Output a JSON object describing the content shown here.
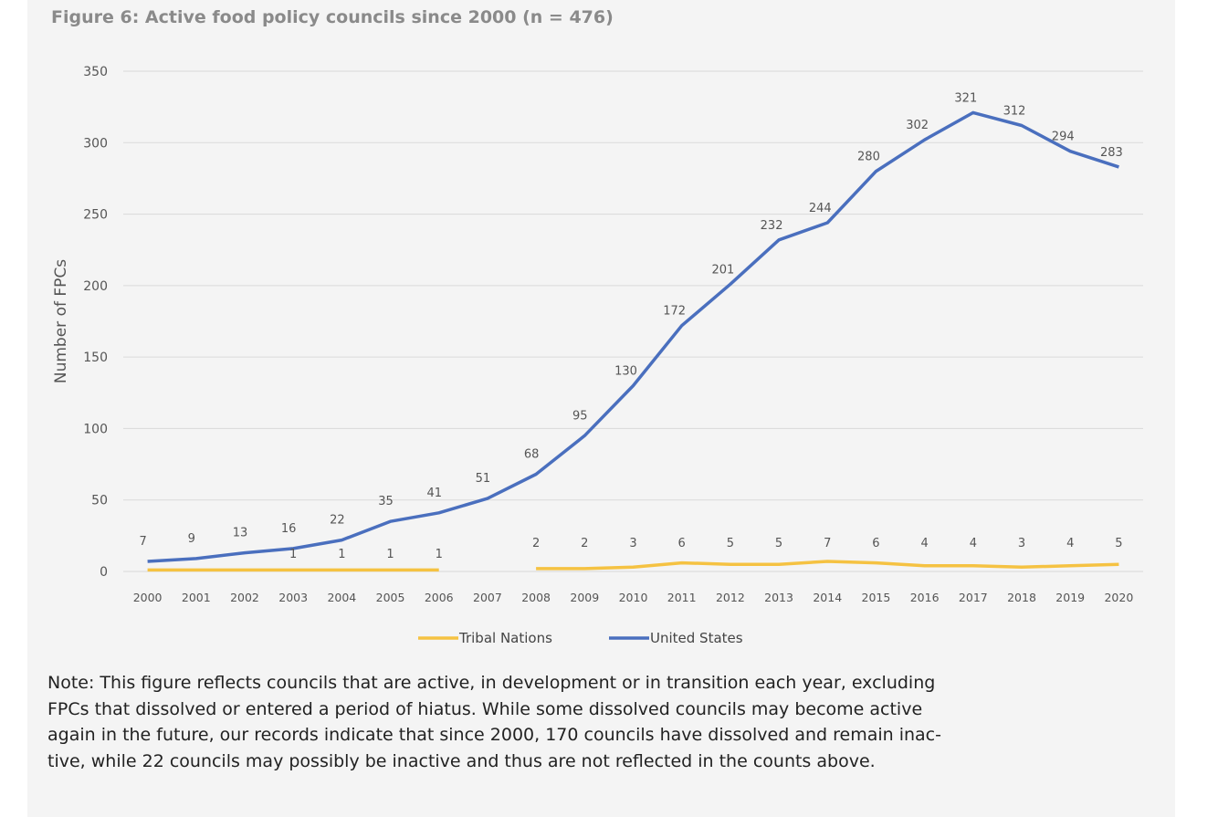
{
  "figure": {
    "title": "Figure 6: Active food policy councils since 2000 (n = 476)",
    "note_lines": [
      "Note: This figure reflects councils that are active, in development or in transition each year, excluding",
      "FPCs that dissolved or entered a period of hiatus. While some dissolved councils may become active",
      "again in the future, our records indicate that since 2000, 170 councils have dissolved and remain inac-",
      "tive, while 22 councils may possibly be inactive and thus are not reflected in the counts above."
    ]
  },
  "chart_data": {
    "type": "line",
    "title": "Figure 6: Active food policy councils since 2000 (n = 476)",
    "xlabel": "",
    "ylabel": "Number of FPCs",
    "categories": [
      "2000",
      "2001",
      "2002",
      "2003",
      "2004",
      "2005",
      "2006",
      "2007",
      "2008",
      "2009",
      "2010",
      "2011",
      "2012",
      "2013",
      "2014",
      "2015",
      "2016",
      "2017",
      "2018",
      "2019",
      "2020"
    ],
    "ylim": [
      0,
      350
    ],
    "yticks": [
      0,
      50,
      100,
      150,
      200,
      250,
      300,
      350
    ],
    "grid": true,
    "legend_position": "bottom",
    "series": [
      {
        "name": "Tribal Nations",
        "color": "#f5c242",
        "values": [
          null,
          null,
          null,
          1,
          1,
          1,
          1,
          null,
          2,
          2,
          3,
          6,
          5,
          5,
          7,
          6,
          4,
          4,
          3,
          4,
          5
        ],
        "line_values": [
          1,
          1,
          1,
          1,
          1,
          1,
          1,
          null,
          2,
          2,
          3,
          6,
          5,
          5,
          7,
          6,
          4,
          4,
          3,
          4,
          5
        ]
      },
      {
        "name": "United States",
        "color": "#4a6fbe",
        "values": [
          7,
          9,
          13,
          16,
          22,
          35,
          41,
          51,
          68,
          95,
          130,
          172,
          201,
          232,
          244,
          280,
          302,
          321,
          312,
          294,
          283
        ]
      }
    ]
  }
}
